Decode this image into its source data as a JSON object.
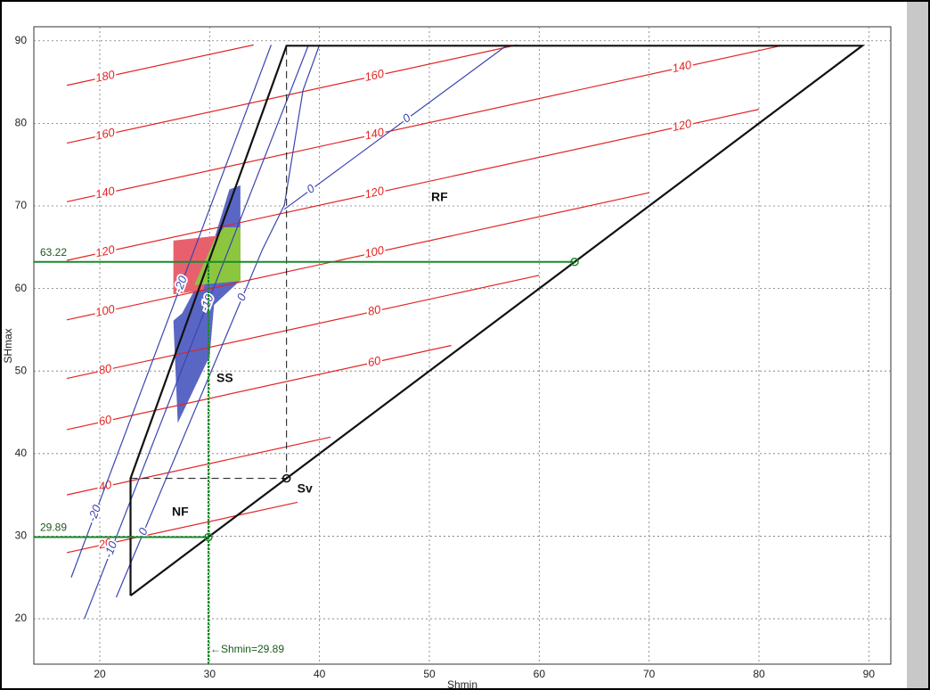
{
  "chart_data": {
    "type": "line",
    "x_label": "Shmin",
    "y_label": "SHmax",
    "xlim": [
      14,
      92
    ],
    "ylim": [
      14.5,
      91.7
    ],
    "xticks": [
      20,
      30,
      40,
      50,
      60,
      70,
      80,
      90
    ],
    "yticks": [
      20,
      30,
      40,
      50,
      60,
      70,
      80,
      90
    ],
    "grid": true,
    "regions": [
      {
        "color": "#5a66c4",
        "x": [
          26.7,
          27.1,
          30,
          30.4,
          32.8,
          32.8,
          31.8,
          29.5,
          27.5
        ],
        "y": [
          56.1,
          43.7,
          51.8,
          58,
          61,
          72.5,
          72,
          62,
          57
        ]
      },
      {
        "color": "#e8606e",
        "x": [
          26.7,
          30.8,
          29.4,
          26.7
        ],
        "y": [
          65.8,
          66.4,
          59.8,
          59.3
        ]
      },
      {
        "color": "#8cc63f",
        "x": [
          28.6,
          30.4,
          31.3,
          32.8,
          32.8
        ],
        "y": [
          60.4,
          65.8,
          67.4,
          67.4,
          60.9
        ]
      }
    ],
    "red_contours": {
      "color": "#e32424",
      "lines": [
        {
          "label": 180,
          "x": [
            17,
            34
          ],
          "y": [
            84.6,
            89.5
          ]
        },
        {
          "label": 160,
          "x": [
            17,
            58
          ],
          "y": [
            77.6,
            89.5
          ]
        },
        {
          "label": 140,
          "x": [
            17,
            82
          ],
          "y": [
            70.5,
            89.4
          ]
        },
        {
          "label": 120,
          "x": [
            17,
            80
          ],
          "y": [
            63.4,
            81.7
          ]
        },
        {
          "label": 100,
          "x": [
            17,
            70
          ],
          "y": [
            56.2,
            71.6
          ]
        },
        {
          "label": 80,
          "x": [
            17,
            60
          ],
          "y": [
            49.1,
            61.6
          ]
        },
        {
          "label": 60,
          "x": [
            17,
            52
          ],
          "y": [
            42.9,
            53.1
          ]
        },
        {
          "label": 40,
          "x": [
            17,
            41
          ],
          "y": [
            35.0,
            42.0
          ]
        },
        {
          "label": 20,
          "x": [
            17,
            38
          ],
          "y": [
            28.0,
            34.1
          ]
        }
      ]
    },
    "blue_contours": {
      "color": "#3a45b0",
      "lines": [
        {
          "label": -20,
          "x": [
            17.4,
            35.6
          ],
          "y": [
            25,
            89.5
          ]
        },
        {
          "label": -10,
          "x": [
            18.6,
            39
          ],
          "y": [
            20,
            89.5
          ]
        },
        {
          "label": 0,
          "x": [
            21.5,
            34.8,
            36.8,
            38.5,
            40
          ],
          "y": [
            22.6,
            64.7,
            70.1,
            84,
            89.5
          ]
        },
        {
          "label": 0,
          "x": [
            36.8,
            57.1
          ],
          "y": [
            69.6,
            89.5
          ]
        }
      ]
    },
    "polygon_lines": [
      {
        "dashed": false,
        "x": [
          22.8,
          22.8,
          37,
          89.4,
          22.8
        ],
        "y": [
          22.8,
          37,
          89.4,
          89.4,
          22.8
        ]
      },
      {
        "dashed": true,
        "x": [
          22.8,
          37,
          37
        ],
        "y": [
          37,
          37,
          89.4
        ]
      }
    ],
    "sv": {
      "label": "Sv",
      "x": 37,
      "y": 37
    },
    "shmax": 63.22,
    "shmin": 29.89,
    "shmin_note": "←Shmin=29.89",
    "guide_color": "#1a8a2a",
    "region_labels": [
      "RF",
      "SS",
      "NF"
    ]
  }
}
